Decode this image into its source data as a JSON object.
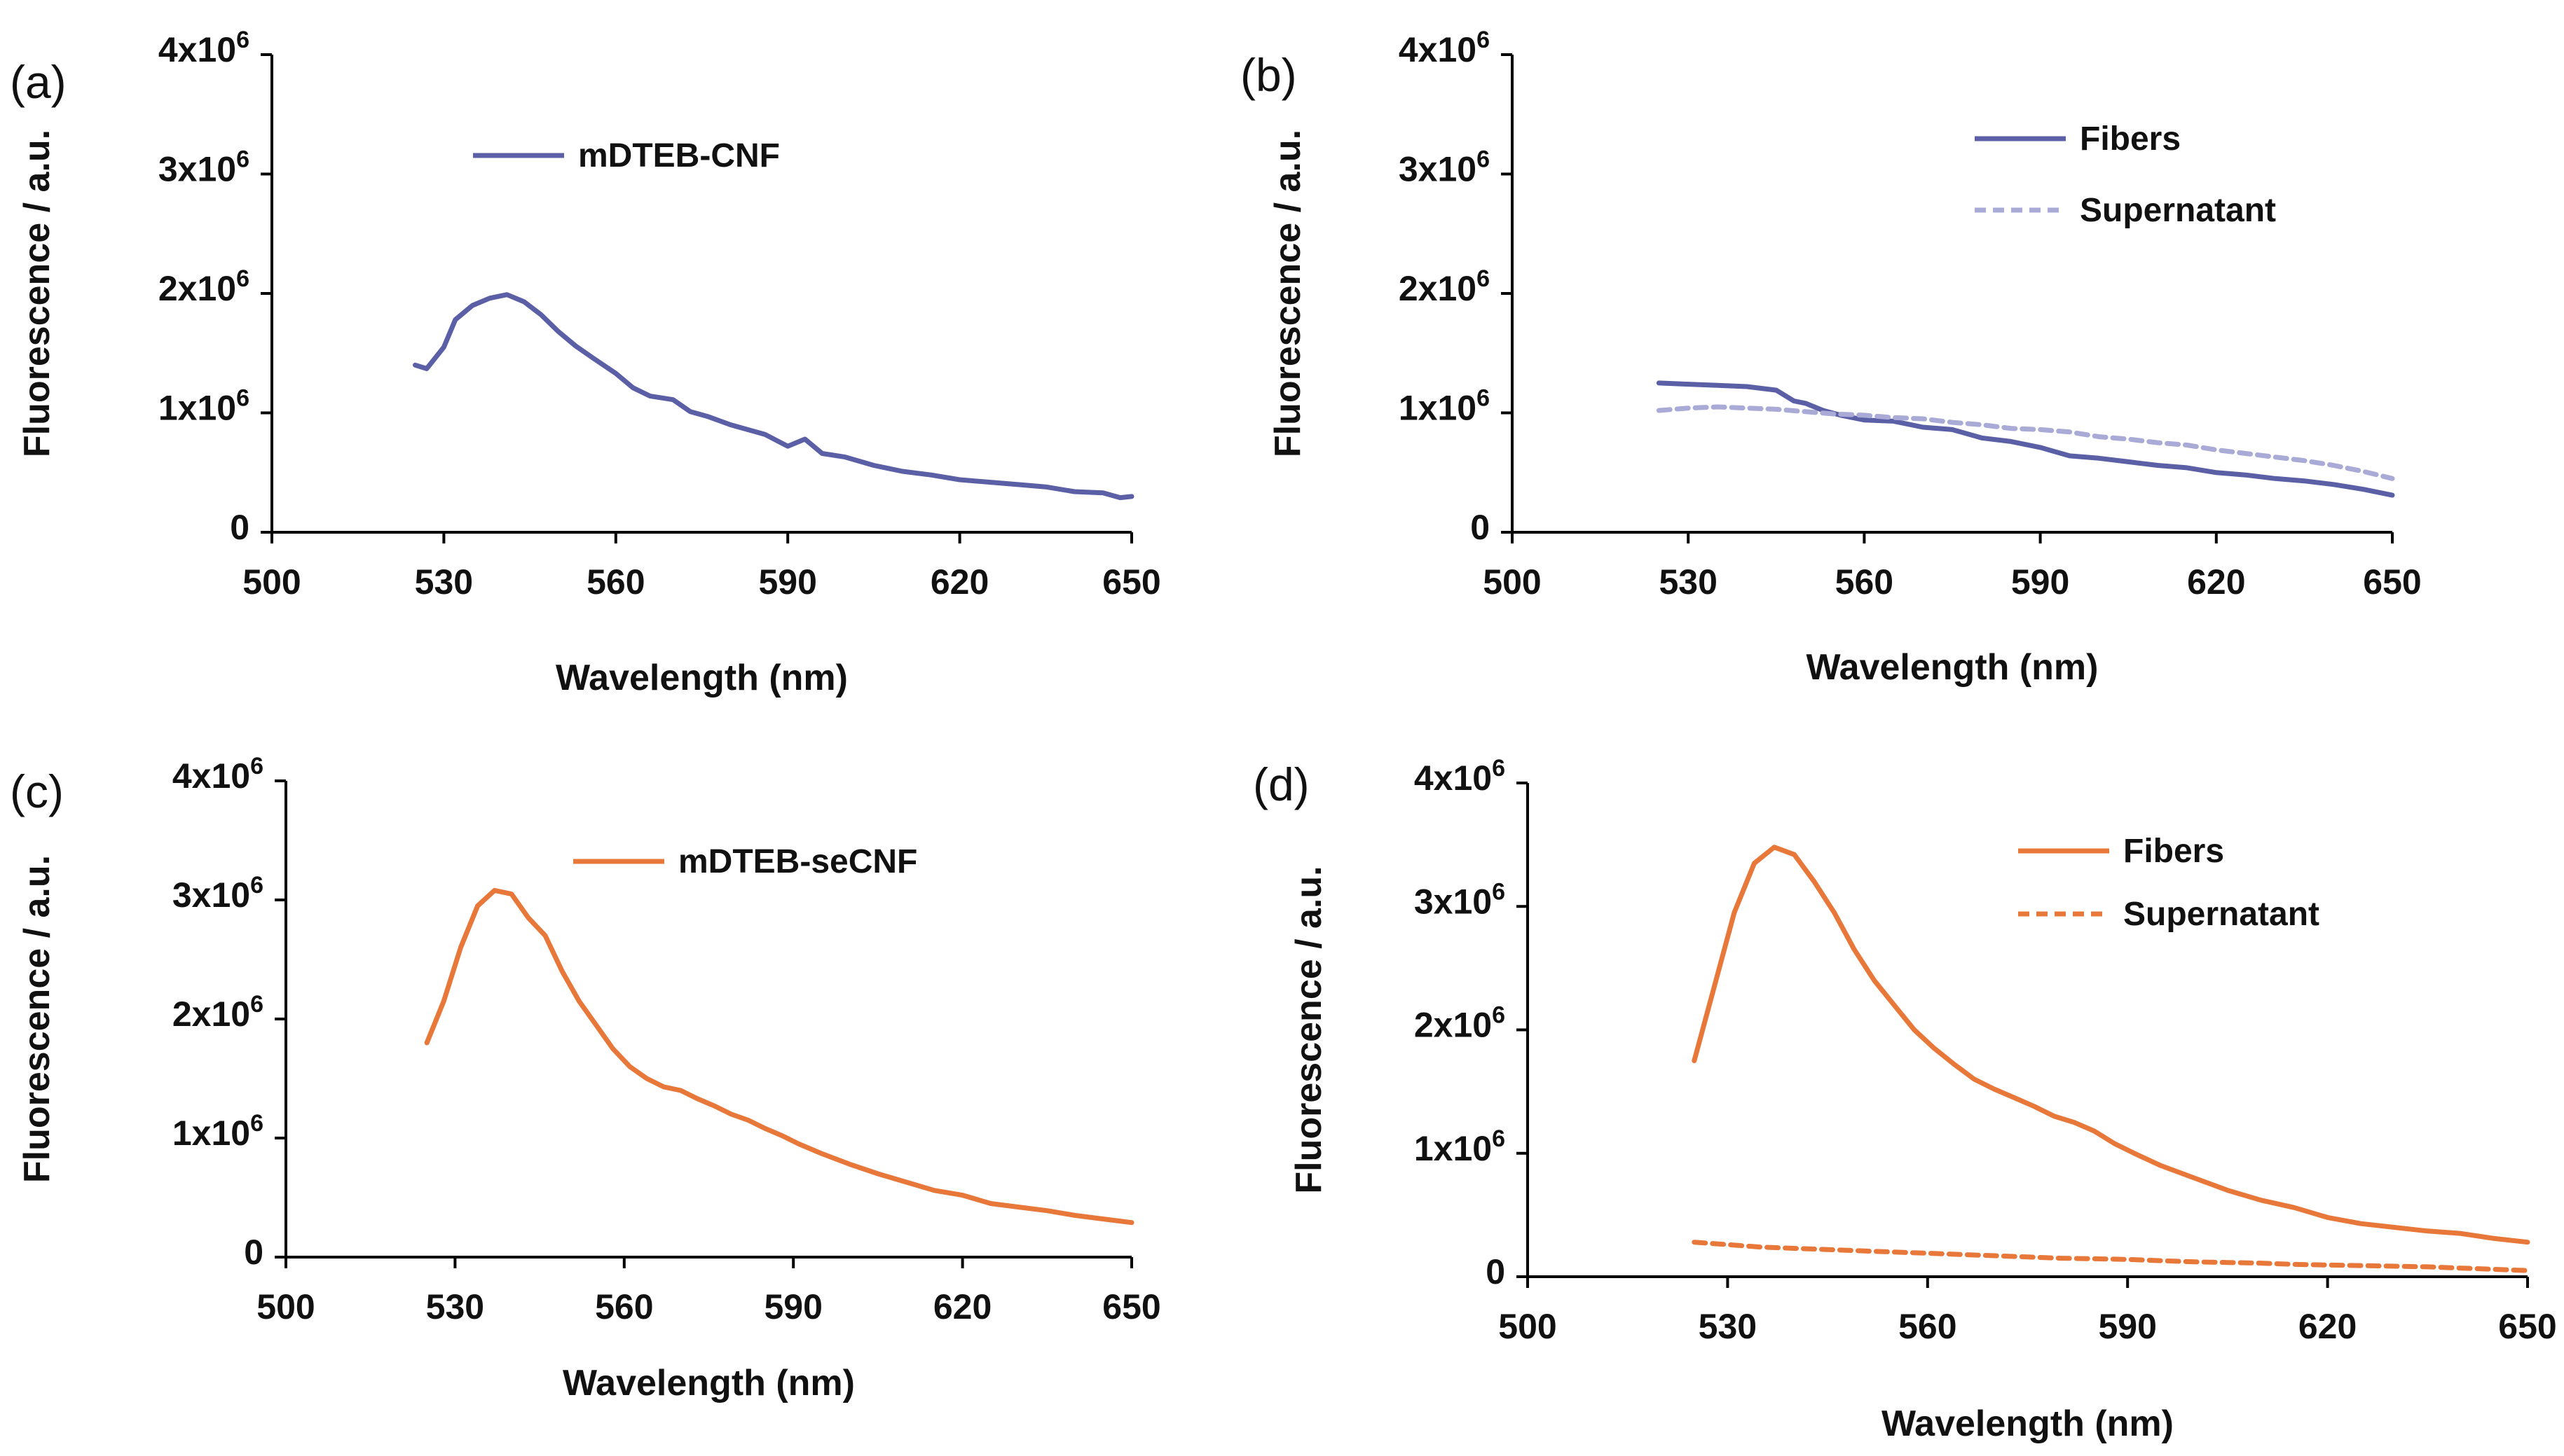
{
  "chart_data": [
    {
      "id": "a",
      "type": "line",
      "panel_label": "(a)",
      "xlabel": "Wavelength (nm)",
      "ylabel": "Fluorescence / a.u.",
      "xlim": [
        500,
        650
      ],
      "ylim": [
        0,
        4000000
      ],
      "xticks": [
        "500",
        "530",
        "560",
        "590",
        "620",
        "650"
      ],
      "yticks": [
        {
          "mant": "0",
          "exp": ""
        },
        {
          "mant": "1x10",
          "exp": "6"
        },
        {
          "mant": "2x10",
          "exp": "6"
        },
        {
          "mant": "3x10",
          "exp": "6"
        },
        {
          "mant": "4x10",
          "exp": "6"
        }
      ],
      "legend_position": "top-left",
      "series": [
        {
          "name": "mDTEB-CNF",
          "color": "#5b5fa6",
          "dash": "solid",
          "x": [
            525,
            527,
            530,
            532,
            535,
            538,
            541,
            544,
            547,
            550,
            553,
            556,
            560,
            563,
            566,
            570,
            573,
            576,
            580,
            583,
            586,
            590,
            593,
            596,
            600,
            605,
            610,
            615,
            620,
            625,
            630,
            635,
            640,
            645,
            648,
            650
          ],
          "values": [
            1400000,
            1370000,
            1550000,
            1780000,
            1900000,
            1960000,
            1990000,
            1930000,
            1820000,
            1680000,
            1560000,
            1460000,
            1330000,
            1210000,
            1140000,
            1110000,
            1010000,
            970000,
            900000,
            860000,
            820000,
            720000,
            780000,
            660000,
            630000,
            560000,
            510000,
            480000,
            440000,
            420000,
            400000,
            380000,
            340000,
            330000,
            290000,
            300000
          ]
        }
      ]
    },
    {
      "id": "b",
      "type": "line",
      "panel_label": "(b)",
      "xlabel": "Wavelength (nm)",
      "ylabel": "Fluorescence / a.u.",
      "xlim": [
        500,
        650
      ],
      "ylim": [
        0,
        4000000
      ],
      "xticks": [
        "500",
        "530",
        "560",
        "590",
        "620",
        "650"
      ],
      "yticks": [
        {
          "mant": "0",
          "exp": ""
        },
        {
          "mant": "1x10",
          "exp": "6"
        },
        {
          "mant": "2x10",
          "exp": "6"
        },
        {
          "mant": "3x10",
          "exp": "6"
        },
        {
          "mant": "4x10",
          "exp": "6"
        }
      ],
      "legend_position": "top-right",
      "series": [
        {
          "name": "Fibers",
          "color": "#5b5fa6",
          "dash": "solid",
          "x": [
            525,
            530,
            535,
            540,
            545,
            548,
            550,
            553,
            556,
            560,
            565,
            570,
            575,
            580,
            585,
            590,
            595,
            600,
            605,
            610,
            615,
            620,
            625,
            630,
            635,
            640,
            645,
            650
          ],
          "values": [
            1250000,
            1240000,
            1230000,
            1220000,
            1190000,
            1100000,
            1080000,
            1020000,
            980000,
            940000,
            930000,
            880000,
            860000,
            790000,
            760000,
            710000,
            640000,
            620000,
            590000,
            560000,
            540000,
            500000,
            480000,
            450000,
            430000,
            400000,
            360000,
            310000
          ]
        },
        {
          "name": "Supernatant",
          "color": "#a9aad6",
          "dash": "dashed",
          "x": [
            525,
            530,
            535,
            540,
            545,
            550,
            555,
            560,
            565,
            570,
            575,
            580,
            585,
            590,
            595,
            600,
            605,
            610,
            615,
            620,
            625,
            630,
            635,
            640,
            645,
            650
          ],
          "values": [
            1020000,
            1040000,
            1050000,
            1040000,
            1030000,
            1010000,
            990000,
            980000,
            960000,
            950000,
            920000,
            900000,
            870000,
            860000,
            840000,
            800000,
            780000,
            750000,
            730000,
            690000,
            660000,
            630000,
            600000,
            560000,
            510000,
            450000
          ]
        }
      ]
    },
    {
      "id": "c",
      "type": "line",
      "panel_label": "(c)",
      "xlabel": "Wavelength (nm)",
      "ylabel": "Fluorescence / a.u.",
      "xlim": [
        500,
        650
      ],
      "ylim": [
        0,
        4000000
      ],
      "xticks": [
        "500",
        "530",
        "560",
        "590",
        "620",
        "650"
      ],
      "yticks": [
        {
          "mant": "0",
          "exp": ""
        },
        {
          "mant": "1x10",
          "exp": "6"
        },
        {
          "mant": "2x10",
          "exp": "6"
        },
        {
          "mant": "3x10",
          "exp": "6"
        },
        {
          "mant": "4x10",
          "exp": "6"
        }
      ],
      "legend_position": "top-left",
      "series": [
        {
          "name": "mDTEB-seCNF",
          "color": "#e8773a",
          "dash": "solid",
          "x": [
            525,
            528,
            531,
            534,
            537,
            540,
            543,
            546,
            549,
            552,
            555,
            558,
            561,
            564,
            567,
            570,
            573,
            576,
            579,
            582,
            585,
            588,
            591,
            595,
            600,
            605,
            610,
            615,
            620,
            625,
            630,
            635,
            640,
            645,
            650
          ],
          "values": [
            1800000,
            2150000,
            2600000,
            2950000,
            3080000,
            3050000,
            2850000,
            2700000,
            2400000,
            2150000,
            1950000,
            1750000,
            1600000,
            1500000,
            1430000,
            1400000,
            1330000,
            1270000,
            1200000,
            1150000,
            1080000,
            1020000,
            950000,
            870000,
            780000,
            700000,
            630000,
            560000,
            520000,
            450000,
            420000,
            390000,
            350000,
            320000,
            290000
          ]
        }
      ]
    },
    {
      "id": "d",
      "type": "line",
      "panel_label": "(d)",
      "xlabel": "Wavelength (nm)",
      "ylabel": "Fluorescence / a.u.",
      "xlim": [
        500,
        650
      ],
      "ylim": [
        0,
        4000000
      ],
      "xticks": [
        "500",
        "530",
        "560",
        "590",
        "620",
        "650"
      ],
      "yticks": [
        {
          "mant": "0",
          "exp": ""
        },
        {
          "mant": "1x10",
          "exp": "6"
        },
        {
          "mant": "2x10",
          "exp": "6"
        },
        {
          "mant": "3x10",
          "exp": "6"
        },
        {
          "mant": "4x10",
          "exp": "6"
        }
      ],
      "legend_position": "top-right",
      "series": [
        {
          "name": "Fibers",
          "color": "#e8773a",
          "dash": "solid",
          "x": [
            525,
            528,
            531,
            534,
            537,
            540,
            543,
            546,
            549,
            552,
            555,
            558,
            561,
            564,
            567,
            570,
            573,
            576,
            579,
            582,
            585,
            588,
            591,
            595,
            600,
            605,
            610,
            615,
            620,
            625,
            630,
            635,
            640,
            645,
            650
          ],
          "values": [
            1750000,
            2350000,
            2950000,
            3350000,
            3480000,
            3420000,
            3200000,
            2950000,
            2650000,
            2400000,
            2200000,
            2000000,
            1850000,
            1720000,
            1600000,
            1520000,
            1450000,
            1380000,
            1300000,
            1250000,
            1180000,
            1080000,
            1000000,
            900000,
            800000,
            700000,
            620000,
            560000,
            480000,
            430000,
            400000,
            370000,
            350000,
            310000,
            280000
          ]
        },
        {
          "name": "Supernatant",
          "color": "#e8773a",
          "dash": "dashed",
          "x": [
            525,
            530,
            535,
            540,
            545,
            550,
            555,
            560,
            565,
            570,
            575,
            580,
            585,
            590,
            595,
            600,
            605,
            610,
            615,
            620,
            625,
            630,
            635,
            640,
            645,
            650
          ],
          "values": [
            280000,
            260000,
            240000,
            230000,
            220000,
            210000,
            200000,
            190000,
            180000,
            170000,
            160000,
            150000,
            145000,
            140000,
            130000,
            120000,
            115000,
            110000,
            100000,
            95000,
            90000,
            85000,
            80000,
            70000,
            60000,
            50000
          ]
        }
      ]
    }
  ]
}
